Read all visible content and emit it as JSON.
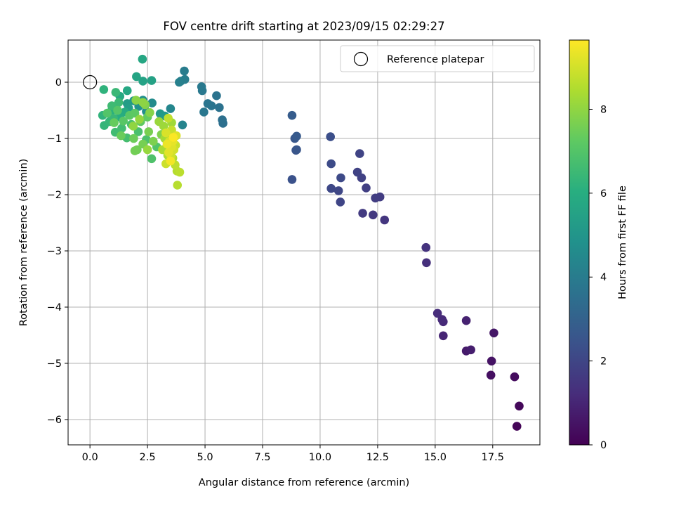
{
  "chart_data": {
    "type": "scatter",
    "title": "FOV centre drift starting at 2023/09/15 02:29:27",
    "xlabel": "Angular distance from reference (arcmin)",
    "ylabel": "Rotation from reference (arcmin)",
    "xlim": [
      -0.95,
      19.55
    ],
    "ylim": [
      -6.45,
      0.75
    ],
    "x_ticks": [
      0.0,
      2.5,
      5.0,
      7.5,
      10.0,
      12.5,
      15.0,
      17.5
    ],
    "x_tick_labels": [
      "0.0",
      "2.5",
      "5.0",
      "7.5",
      "10.0",
      "12.5",
      "15.0",
      "17.5"
    ],
    "y_ticks": [
      0,
      -1,
      -2,
      -3,
      -4,
      -5,
      -6
    ],
    "y_tick_labels": [
      "0",
      "−1",
      "−2",
      "−3",
      "−4",
      "−5",
      "−6"
    ],
    "grid": true,
    "legend": {
      "placement": "top-right",
      "label": "Reference platepar"
    },
    "reference_point": {
      "x": 0.0,
      "y": 0.0
    },
    "colorbar": {
      "label": "Hours from first FF file",
      "range": [
        0,
        9.65
      ],
      "ticks": [
        0,
        2,
        4,
        6,
        8
      ],
      "tick_labels": [
        "0",
        "2",
        "4",
        "6",
        "8"
      ],
      "colormap": "viridis"
    },
    "points": [
      {
        "x": 18.55,
        "y": -6.12,
        "t": 0.1
      },
      {
        "x": 18.65,
        "y": -5.76,
        "t": 0.2
      },
      {
        "x": 18.45,
        "y": -5.24,
        "t": 0.3
      },
      {
        "x": 17.42,
        "y": -5.21,
        "t": 0.4
      },
      {
        "x": 17.45,
        "y": -4.96,
        "t": 0.5
      },
      {
        "x": 17.55,
        "y": -4.46,
        "t": 0.6
      },
      {
        "x": 16.35,
        "y": -4.78,
        "t": 0.7
      },
      {
        "x": 16.55,
        "y": -4.76,
        "t": 0.8
      },
      {
        "x": 16.35,
        "y": -4.24,
        "t": 0.9
      },
      {
        "x": 15.35,
        "y": -4.51,
        "t": 1.0
      },
      {
        "x": 15.35,
        "y": -4.26,
        "t": 1.1
      },
      {
        "x": 15.3,
        "y": -4.22,
        "t": 1.15
      },
      {
        "x": 15.1,
        "y": -4.11,
        "t": 1.2
      },
      {
        "x": 14.62,
        "y": -3.21,
        "t": 1.3
      },
      {
        "x": 14.6,
        "y": -2.94,
        "t": 1.4
      },
      {
        "x": 12.8,
        "y": -2.45,
        "t": 1.5
      },
      {
        "x": 12.3,
        "y": -2.36,
        "t": 1.6
      },
      {
        "x": 11.85,
        "y": -2.33,
        "t": 1.65
      },
      {
        "x": 12.6,
        "y": -2.04,
        "t": 1.7
      },
      {
        "x": 12.4,
        "y": -2.06,
        "t": 1.75
      },
      {
        "x": 12.0,
        "y": -1.88,
        "t": 1.8
      },
      {
        "x": 11.8,
        "y": -1.7,
        "t": 1.85
      },
      {
        "x": 11.62,
        "y": -1.6,
        "t": 1.9
      },
      {
        "x": 11.72,
        "y": -1.27,
        "t": 1.95
      },
      {
        "x": 10.88,
        "y": -2.13,
        "t": 2.0
      },
      {
        "x": 10.8,
        "y": -1.93,
        "t": 2.05
      },
      {
        "x": 10.48,
        "y": -1.89,
        "t": 2.1
      },
      {
        "x": 10.9,
        "y": -1.7,
        "t": 2.15
      },
      {
        "x": 10.48,
        "y": -1.45,
        "t": 2.2
      },
      {
        "x": 10.45,
        "y": -0.97,
        "t": 2.3
      },
      {
        "x": 8.78,
        "y": -1.73,
        "t": 2.4
      },
      {
        "x": 8.95,
        "y": -1.21,
        "t": 2.5
      },
      {
        "x": 8.98,
        "y": -1.2,
        "t": 2.55
      },
      {
        "x": 8.9,
        "y": -1.0,
        "t": 2.6
      },
      {
        "x": 8.98,
        "y": -0.96,
        "t": 2.7
      },
      {
        "x": 8.78,
        "y": -0.59,
        "t": 2.8
      },
      {
        "x": 5.78,
        "y": -0.73,
        "t": 3.5
      },
      {
        "x": 5.75,
        "y": -0.67,
        "t": 3.55
      },
      {
        "x": 5.62,
        "y": -0.45,
        "t": 3.6
      },
      {
        "x": 5.5,
        "y": -0.24,
        "t": 3.65
      },
      {
        "x": 5.28,
        "y": -0.42,
        "t": 3.7
      },
      {
        "x": 5.12,
        "y": -0.38,
        "t": 3.75
      },
      {
        "x": 4.95,
        "y": -0.53,
        "t": 3.8
      },
      {
        "x": 4.88,
        "y": -0.15,
        "t": 3.85
      },
      {
        "x": 4.85,
        "y": -0.08,
        "t": 3.9
      },
      {
        "x": 4.1,
        "y": 0.2,
        "t": 4.0
      },
      {
        "x": 4.12,
        "y": 0.05,
        "t": 4.05
      },
      {
        "x": 3.95,
        "y": 0.02,
        "t": 4.1
      },
      {
        "x": 3.88,
        "y": 0.0,
        "t": 4.15
      },
      {
        "x": 4.02,
        "y": -0.76,
        "t": 4.3
      },
      {
        "x": 3.5,
        "y": -0.47,
        "t": 4.4
      },
      {
        "x": 2.7,
        "y": -0.37,
        "t": 4.6
      },
      {
        "x": 2.45,
        "y": -0.52,
        "t": 4.7
      },
      {
        "x": 2.3,
        "y": -0.32,
        "t": 4.8
      },
      {
        "x": 2.12,
        "y": -0.43,
        "t": 4.9
      },
      {
        "x": 1.9,
        "y": -0.33,
        "t": 5.0
      },
      {
        "x": 3.05,
        "y": -0.56,
        "t": 5.1
      },
      {
        "x": 3.25,
        "y": -0.6,
        "t": 5.2
      },
      {
        "x": 1.62,
        "y": -0.38,
        "t": 5.3
      },
      {
        "x": 1.68,
        "y": -0.46,
        "t": 5.35
      },
      {
        "x": 2.68,
        "y": 0.03,
        "t": 5.5
      },
      {
        "x": 2.3,
        "y": 0.02,
        "t": 5.55
      },
      {
        "x": 2.02,
        "y": 0.1,
        "t": 5.6
      },
      {
        "x": 2.28,
        "y": 0.41,
        "t": 5.7
      },
      {
        "x": 1.62,
        "y": -0.15,
        "t": 5.75
      },
      {
        "x": 1.3,
        "y": -0.25,
        "t": 5.8
      },
      {
        "x": 1.52,
        "y": -0.53,
        "t": 5.9
      },
      {
        "x": 1.3,
        "y": -0.62,
        "t": 6.0
      },
      {
        "x": 0.95,
        "y": -0.5,
        "t": 6.1
      },
      {
        "x": 0.6,
        "y": -0.13,
        "t": 6.2
      },
      {
        "x": 0.55,
        "y": -0.59,
        "t": 6.25
      },
      {
        "x": 0.62,
        "y": -0.77,
        "t": 6.3
      },
      {
        "x": 0.85,
        "y": -0.7,
        "t": 6.35
      },
      {
        "x": 1.02,
        "y": -0.64,
        "t": 6.4
      },
      {
        "x": 1.12,
        "y": -0.18,
        "t": 6.45
      },
      {
        "x": 1.25,
        "y": -0.36,
        "t": 6.5
      },
      {
        "x": 0.95,
        "y": -0.42,
        "t": 6.55
      },
      {
        "x": 1.1,
        "y": -0.89,
        "t": 6.6
      },
      {
        "x": 1.38,
        "y": -0.82,
        "t": 6.65
      },
      {
        "x": 1.6,
        "y": -0.99,
        "t": 6.7
      },
      {
        "x": 1.8,
        "y": -0.75,
        "t": 6.75
      },
      {
        "x": 2.1,
        "y": -0.88,
        "t": 6.8
      },
      {
        "x": 2.45,
        "y": -1.02,
        "t": 6.85
      },
      {
        "x": 2.68,
        "y": -1.36,
        "t": 6.9
      },
      {
        "x": 2.9,
        "y": -1.15,
        "t": 6.95
      },
      {
        "x": 0.75,
        "y": -0.55,
        "t": 7.0
      },
      {
        "x": 1.2,
        "y": -0.5,
        "t": 7.05
      },
      {
        "x": 1.45,
        "y": -0.69,
        "t": 7.1
      },
      {
        "x": 1.72,
        "y": -0.59,
        "t": 7.15
      },
      {
        "x": 1.95,
        "y": -0.55,
        "t": 7.2
      },
      {
        "x": 2.2,
        "y": -0.7,
        "t": 7.25
      },
      {
        "x": 2.5,
        "y": -0.62,
        "t": 7.3
      },
      {
        "x": 1.05,
        "y": -0.72,
        "t": 7.35
      },
      {
        "x": 1.35,
        "y": -0.95,
        "t": 7.4
      },
      {
        "x": 1.9,
        "y": -1.0,
        "t": 7.45
      },
      {
        "x": 2.05,
        "y": -1.2,
        "t": 7.5
      },
      {
        "x": 1.95,
        "y": -1.22,
        "t": 7.55
      },
      {
        "x": 2.3,
        "y": -1.1,
        "t": 7.6
      },
      {
        "x": 2.55,
        "y": -0.88,
        "t": 7.65
      },
      {
        "x": 2.75,
        "y": -1.05,
        "t": 7.7
      },
      {
        "x": 3.1,
        "y": -0.93,
        "t": 7.75
      },
      {
        "x": 2.4,
        "y": -0.4,
        "t": 7.8
      },
      {
        "x": 2.6,
        "y": -0.54,
        "t": 7.85
      },
      {
        "x": 2.0,
        "y": -0.32,
        "t": 7.9
      },
      {
        "x": 2.3,
        "y": -0.36,
        "t": 7.95
      },
      {
        "x": 1.88,
        "y": -0.78,
        "t": 8.0
      },
      {
        "x": 2.15,
        "y": -0.66,
        "t": 8.05
      },
      {
        "x": 2.5,
        "y": -1.2,
        "t": 8.1
      },
      {
        "x": 3.0,
        "y": -0.7,
        "t": 8.15
      },
      {
        "x": 3.2,
        "y": -0.78,
        "t": 8.2
      },
      {
        "x": 3.55,
        "y": -0.72,
        "t": 8.25
      },
      {
        "x": 3.25,
        "y": -1.0,
        "t": 8.3
      },
      {
        "x": 3.45,
        "y": -0.96,
        "t": 8.35
      },
      {
        "x": 3.15,
        "y": -1.2,
        "t": 8.4
      },
      {
        "x": 3.38,
        "y": -1.3,
        "t": 8.45
      },
      {
        "x": 3.6,
        "y": -1.35,
        "t": 8.5
      },
      {
        "x": 3.78,
        "y": -1.58,
        "t": 8.55
      },
      {
        "x": 3.8,
        "y": -1.83,
        "t": 8.6
      },
      {
        "x": 3.9,
        "y": -1.6,
        "t": 8.65
      },
      {
        "x": 3.7,
        "y": -1.47,
        "t": 8.7
      },
      {
        "x": 3.4,
        "y": -0.64,
        "t": 8.75
      },
      {
        "x": 3.55,
        "y": -0.85,
        "t": 8.8
      },
      {
        "x": 3.72,
        "y": -1.12,
        "t": 8.85
      },
      {
        "x": 3.3,
        "y": -1.45,
        "t": 8.9
      },
      {
        "x": 3.52,
        "y": -1.32,
        "t": 8.95
      },
      {
        "x": 3.65,
        "y": -1.2,
        "t": 9.0
      },
      {
        "x": 3.45,
        "y": -1.05,
        "t": 9.05
      },
      {
        "x": 3.3,
        "y": -0.9,
        "t": 9.1
      },
      {
        "x": 3.75,
        "y": -0.95,
        "t": 9.15
      },
      {
        "x": 3.55,
        "y": -1.15,
        "t": 9.2
      },
      {
        "x": 3.42,
        "y": -1.25,
        "t": 9.25
      },
      {
        "x": 3.6,
        "y": -1.05,
        "t": 9.3
      },
      {
        "x": 3.35,
        "y": -1.1,
        "t": 9.4
      },
      {
        "x": 3.5,
        "y": -1.4,
        "t": 9.5
      },
      {
        "x": 3.62,
        "y": -0.98,
        "t": 9.6
      }
    ]
  }
}
